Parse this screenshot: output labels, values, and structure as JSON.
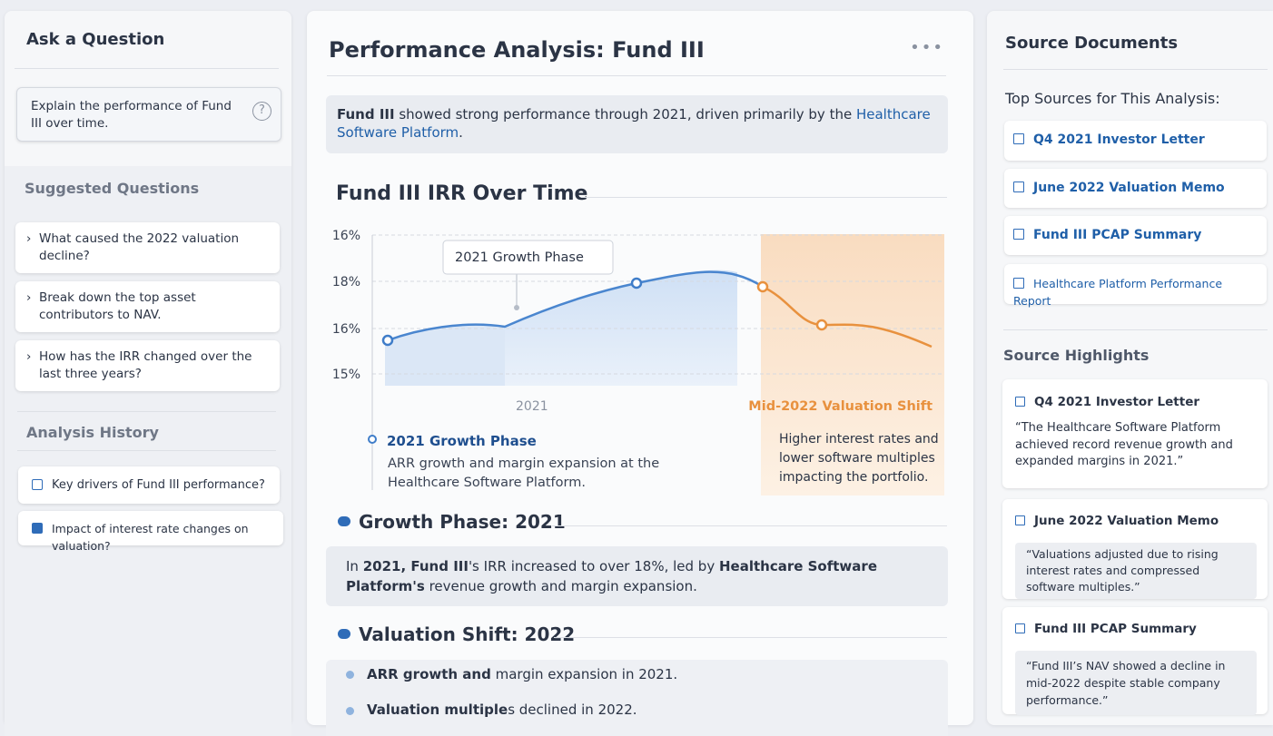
{
  "sidebar": {
    "ask_title": "Ask a Question",
    "question": "Explain the performance of Fund III over time.",
    "suggested_title": "Suggested Questions",
    "suggested": [
      "What caused the 2022 valuation decline?",
      "Break down the top asset contributors to NAV.",
      "How has the IRR changed over the last three years?"
    ],
    "history_title": "Analysis History",
    "history": [
      "Key drivers of Fund III performance?",
      "Impact of interest rate changes on valuation?"
    ]
  },
  "main": {
    "title": "Performance Analysis: Fund III",
    "summary": {
      "lead": "Fund III",
      "text": " showed strong performance through 2021, driven primarily by the ",
      "link": "Healthcare Software Platform",
      "end": "."
    },
    "chart": {
      "title": "Fund III IRR Over Time",
      "y_labels": [
        "16%",
        "18%",
        "16%",
        "15%"
      ],
      "x_label": "2021",
      "callout": "2021 Growth Phase",
      "shift_label": "Mid-2022 Valuation Shift",
      "growth_title": "2021 Growth Phase",
      "growth_lines": [
        "ARR growth and margin expansion at the",
        "Healthcare Software Platform."
      ],
      "shift_lines": [
        "Higher interest rates and",
        "lower software multiples",
        "impacting the portfolio."
      ]
    },
    "growth_section": {
      "title": "Growth Phase: 2021",
      "parts": [
        "In ",
        "2021, Fund III",
        "'s IRR ",
        "increased to over 18%, led by ",
        "Healthcare Software Platform's",
        " revenue growth and margin expansion."
      ]
    },
    "valuation_section": {
      "title": "Valuation Shift: 2022",
      "bullets": [
        [
          "ARR growth and",
          " margin expansion in 2021."
        ],
        [
          "Valuation multiple",
          "s declined in 2022."
        ]
      ]
    }
  },
  "sources": {
    "title": "Source Documents",
    "top_title": "Top Sources for This Analysis:",
    "top": [
      "Q4 2021 Investor Letter",
      "June 2022 Valuation Memo",
      "Fund III PCAP Summary",
      "Healthcare Platform Performance Report"
    ],
    "highlights_title": "Source Highlights",
    "highlights": [
      {
        "title": "Q4 2021 Investor Letter",
        "quote": "“The Healthcare Software Platform achieved record revenue growth and expanded margins in 2021.”"
      },
      {
        "title": "June 2022 Valuation Memo",
        "quote": "“Valuations adjusted due to rising interest rates and compressed software multiples.”"
      },
      {
        "title": "Fund III PCAP Summary",
        "quote": "“Fund III’s NAV showed a decline in mid-2022 despite stable company performance.”"
      }
    ]
  }
}
